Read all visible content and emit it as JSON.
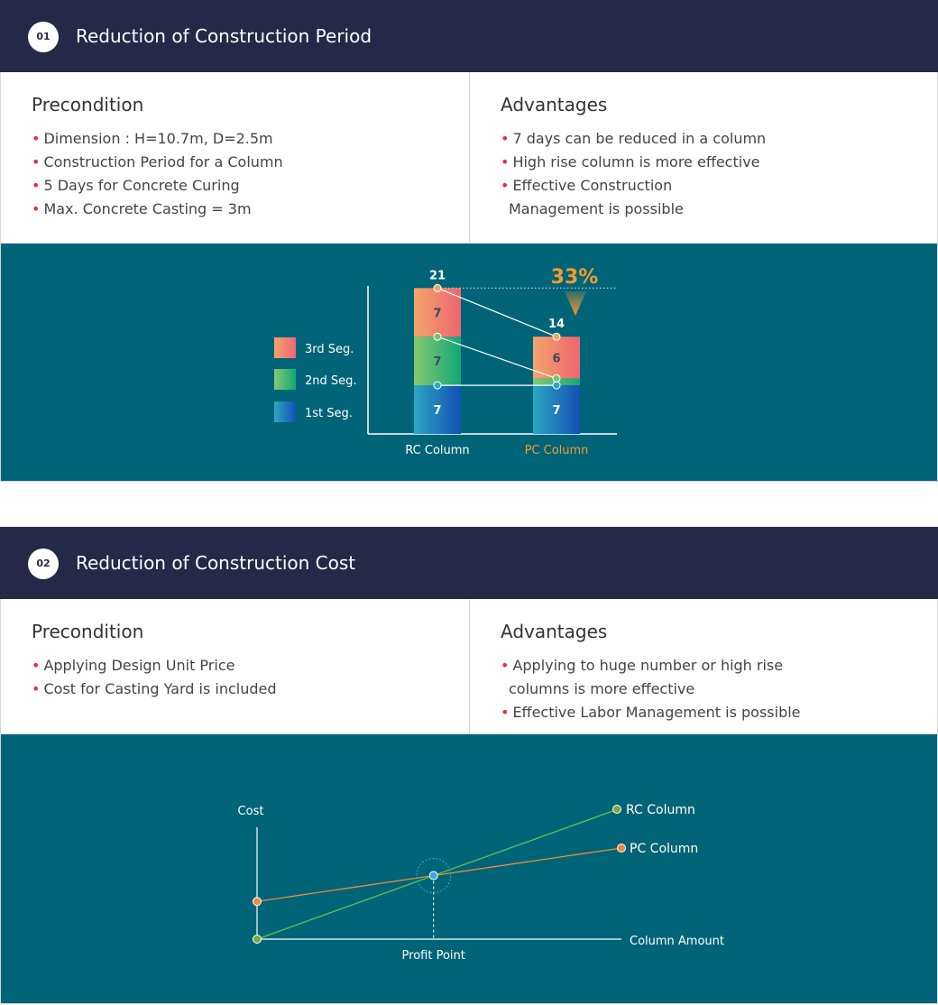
{
  "section1": {
    "number": "01",
    "title": "Reduction of Construction Period",
    "precondition_title": "Precondition",
    "precondition": [
      "Dimension : H=10.7m, D=2.5m",
      "Construction Period for a Column",
      "5 Days for Concrete Curing",
      "Max. Concrete Casting = 3m"
    ],
    "advantages_title": "Advantages",
    "advantages": [
      "7 days can be reduced in a column",
      "High rise column is more effective",
      "Effective Construction",
      "Management is possible"
    ]
  },
  "section2": {
    "number": "02",
    "title": "Reduction of Construction Cost",
    "precondition_title": "Precondition",
    "precondition": [
      "Applying Design Unit Price",
      "Cost for Casting Yard is included"
    ],
    "advantages_title": "Advantages",
    "advantages": [
      "Applying to huge number or high rise",
      "columns is more effective",
      "Effective Labor Management is possible"
    ]
  },
  "colors": {
    "header_bg": "#262847",
    "panel_bg": "#006478",
    "bullet": "#e0333a",
    "highlight": "#f39a2e",
    "rc_line": "#5cc24a",
    "pc_line": "#f08a3a"
  },
  "chart_data": [
    {
      "type": "bar",
      "stacked": true,
      "categories": [
        "RC Column",
        "PC Column"
      ],
      "series": [
        {
          "name": "1st Seg.",
          "values": [
            7,
            7
          ]
        },
        {
          "name": "2nd Seg.",
          "values": [
            7,
            1
          ]
        },
        {
          "name": "3rd Seg.",
          "values": [
            7,
            6
          ]
        }
      ],
      "totals": [
        21,
        14
      ],
      "annotation": "33%",
      "legend_position": "left"
    },
    {
      "type": "line",
      "xlabel": "Column Amount",
      "ylabel": "Cost",
      "annotation": "Profit Point",
      "series": [
        {
          "name": "RC Column",
          "values": [
            0,
            1
          ]
        },
        {
          "name": "PC Column",
          "values": [
            0.29,
            0.71
          ]
        }
      ]
    }
  ]
}
